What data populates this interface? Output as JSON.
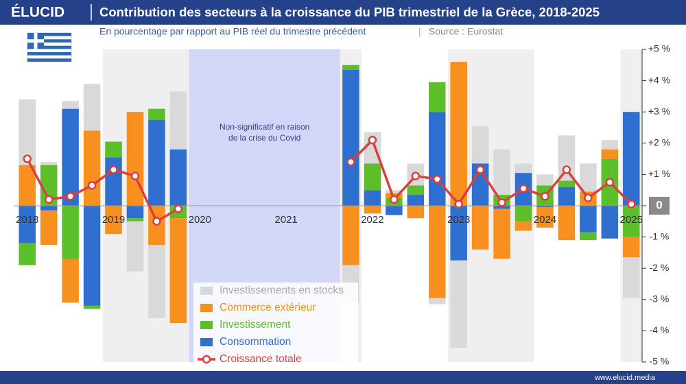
{
  "chart_data": {
    "type": "bar",
    "stacked": true,
    "brand": "ÉLUCID",
    "title": "Contribution des secteurs à la croissance du PIB trimestriel de la Grèce, 2018-2025",
    "subtitle": "En pourcentage par rapport au PIB réel du trimestre précédent",
    "source": "Source : Eurostat",
    "footer": "www.elucid.media",
    "annotation": [
      "Non-significatif en raison",
      "de la crise du Covid"
    ],
    "categories": [
      "2018",
      null,
      null,
      null,
      "2019",
      null,
      null,
      null,
      "2020",
      null,
      null,
      null,
      "2021",
      null,
      null,
      null,
      "2022",
      null,
      null,
      null,
      "2023",
      null,
      null,
      null,
      "2024",
      null,
      null,
      null,
      "2025"
    ],
    "series": [
      {
        "name": "Consommation",
        "color": "#2f6fd0",
        "values": [
          -1.2,
          -0.15,
          3.1,
          -3.2,
          1.55,
          -0.4,
          2.75,
          1.8,
          null,
          null,
          null,
          null,
          null,
          null,
          null,
          4.35,
          0.5,
          -0.3,
          0.35,
          3.0,
          -1.75,
          1.35,
          -0.1,
          1.05,
          -0.05,
          0.6,
          -0.85,
          -1.05,
          3.0
        ]
      },
      {
        "name": "Investissement",
        "color": "#5cbf2a",
        "values": [
          -0.7,
          1.3,
          -1.7,
          -0.1,
          0.5,
          -0.1,
          0.35,
          -0.4,
          null,
          null,
          null,
          null,
          null,
          null,
          null,
          0.15,
          0.85,
          0.25,
          0.3,
          0.95,
          0,
          0,
          0.35,
          -0.5,
          0.65,
          0.2,
          -0.25,
          1.5,
          -1.0
        ]
      },
      {
        "name": "Commerce extérieur",
        "color": "#f7901e",
        "values": [
          1.3,
          -1.1,
          -1.4,
          2.4,
          -0.9,
          3.0,
          -1.25,
          -3.35,
          null,
          null,
          null,
          null,
          null,
          null,
          null,
          -1.9,
          -0.25,
          0.15,
          -0.4,
          -2.95,
          4.6,
          -1.4,
          -1.6,
          -0.3,
          -0.65,
          -1.1,
          0.45,
          0.3,
          -0.65
        ]
      },
      {
        "name": "Investissements en stocks",
        "color": "#d9d9d9",
        "values": [
          2.1,
          0.1,
          0.25,
          1.5,
          0,
          -1.6,
          -2.35,
          1.85,
          null,
          null,
          null,
          null,
          null,
          null,
          null,
          -1.2,
          1.0,
          0.1,
          0.7,
          -0.2,
          -2.8,
          1.2,
          1.45,
          0.3,
          0.35,
          1.45,
          0.9,
          0.3,
          -1.3
        ]
      }
    ],
    "total": {
      "name": "Croissance totale",
      "color": "#d94040",
      "values": [
        1.5,
        0.2,
        0.3,
        0.65,
        1.15,
        0.95,
        -0.5,
        -0.1,
        null,
        null,
        null,
        null,
        null,
        null,
        null,
        1.4,
        2.1,
        0.2,
        0.95,
        0.85,
        0.05,
        1.15,
        0.1,
        0.55,
        0.3,
        1.15,
        0.25,
        0.75,
        0.05
      ]
    },
    "ylim": [
      -5,
      5
    ],
    "yticks": [
      {
        "value": -5,
        "label": "-5 %"
      },
      {
        "value": -4,
        "label": "-4 %"
      },
      {
        "value": -3,
        "label": "-3 %"
      },
      {
        "value": -2,
        "label": "-2 %"
      },
      {
        "value": -1,
        "label": "-1 %"
      },
      0,
      {
        "value": 1,
        "label": "+1 %"
      },
      {
        "value": 2,
        "label": "+2 %"
      },
      {
        "value": 3,
        "label": "+3 %"
      },
      {
        "value": 4,
        "label": "+4 %"
      },
      {
        "value": 5,
        "label": "+5 %"
      }
    ]
  }
}
